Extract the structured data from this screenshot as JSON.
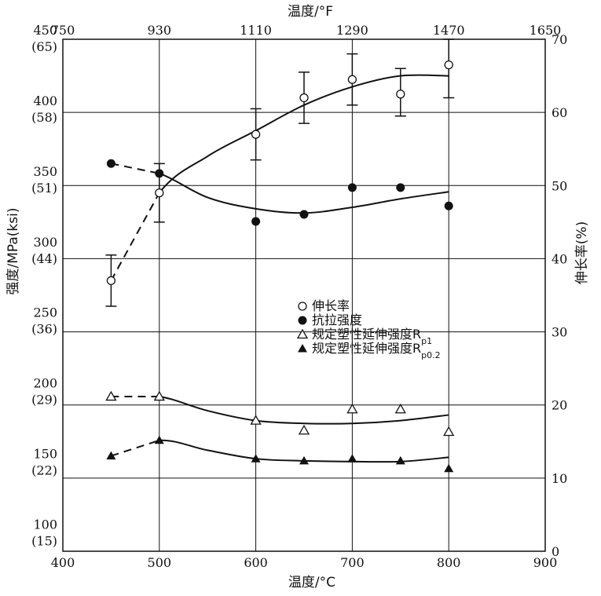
{
  "chart_data": {
    "type": "line",
    "x_axis_bottom": {
      "label": "温度/°C",
      "range": [
        400,
        900
      ],
      "ticks": [
        "400",
        "500",
        "600",
        "700",
        "800",
        "900"
      ]
    },
    "x_axis_top": {
      "label": "温度/°F",
      "range": [
        750,
        1650
      ],
      "ticks": [
        "750",
        "930",
        "1110",
        "1290",
        "1470",
        "1650"
      ]
    },
    "y_axis_left": {
      "label": "强度/MPa(ksi)",
      "range": [
        87.5,
        450
      ],
      "ticks": [
        {
          "value": 450,
          "mpa": "450",
          "ksi": "(65)"
        },
        {
          "value": 400,
          "mpa": "400",
          "ksi": "(58)"
        },
        {
          "value": 350,
          "mpa": "350",
          "ksi": "(51)"
        },
        {
          "value": 300,
          "mpa": "300",
          "ksi": "(44)"
        },
        {
          "value": 250,
          "mpa": "250",
          "ksi": "(36)"
        },
        {
          "value": 200,
          "mpa": "200",
          "ksi": "(29)"
        },
        {
          "value": 150,
          "mpa": "150",
          "ksi": "(22)"
        },
        {
          "value": 100,
          "mpa": "100",
          "ksi": "(15)"
        }
      ]
    },
    "y_axis_right": {
      "label": "伸长率(%)",
      "range": [
        0,
        70
      ],
      "ticks": [
        "0",
        "10",
        "20",
        "30",
        "40",
        "50",
        "60",
        "70"
      ]
    },
    "grid": {
      "horizontal": true,
      "vertical": true
    },
    "legend_position": "center",
    "series": [
      {
        "name": "伸长率",
        "axis": "right",
        "marker": "open-circle",
        "points": [
          {
            "x": 450,
            "y": 37,
            "err": [
              33.5,
              40.5
            ]
          },
          {
            "x": 500,
            "y": 49,
            "err": [
              45,
              53
            ]
          },
          {
            "x": 600,
            "y": 57,
            "err": [
              53.5,
              60.5
            ]
          },
          {
            "x": 650,
            "y": 62,
            "err": [
              58.5,
              65.5
            ]
          },
          {
            "x": 700,
            "y": 64.5,
            "err": [
              61,
              68
            ]
          },
          {
            "x": 750,
            "y": 62.5,
            "err": [
              59.5,
              66
            ]
          },
          {
            "x": 800,
            "y": 66.5,
            "err": [
              62,
              70
            ]
          }
        ],
        "trend": [
          [
            450,
            37
          ],
          [
            500,
            49
          ],
          [
            550,
            54
          ],
          [
            600,
            57.5
          ],
          [
            650,
            61
          ],
          [
            700,
            63.5
          ],
          [
            750,
            65
          ],
          [
            800,
            65
          ]
        ]
      },
      {
        "name": "抗拉强度",
        "axis": "left",
        "marker": "filled-circle",
        "points": [
          {
            "x": 450,
            "y": 362
          },
          {
            "x": 500,
            "y": 355
          },
          {
            "x": 600,
            "y": 321
          },
          {
            "x": 650,
            "y": 326
          },
          {
            "x": 700,
            "y": 345
          },
          {
            "x": 750,
            "y": 345
          },
          {
            "x": 800,
            "y": 332
          }
        ],
        "trend": [
          [
            450,
            362
          ],
          [
            500,
            355
          ],
          [
            550,
            338
          ],
          [
            600,
            330
          ],
          [
            650,
            327
          ],
          [
            700,
            331
          ],
          [
            750,
            337
          ],
          [
            800,
            342
          ]
        ]
      },
      {
        "name": "规定塑性延伸强度Rp1",
        "axis": "left",
        "marker": "open-triangle",
        "points": [
          {
            "x": 450,
            "y": 197
          },
          {
            "x": 500,
            "y": 197
          },
          {
            "x": 600,
            "y": 180
          },
          {
            "x": 650,
            "y": 173
          },
          {
            "x": 700,
            "y": 188
          },
          {
            "x": 750,
            "y": 188
          },
          {
            "x": 800,
            "y": 172
          }
        ],
        "trend": [
          [
            450,
            197
          ],
          [
            500,
            197
          ],
          [
            550,
            187
          ],
          [
            600,
            180
          ],
          [
            650,
            178
          ],
          [
            700,
            178
          ],
          [
            750,
            180
          ],
          [
            800,
            184
          ]
        ]
      },
      {
        "name": "规定塑性延伸强度Rp0.2",
        "axis": "left",
        "marker": "filled-triangle",
        "points": [
          {
            "x": 450,
            "y": 155
          },
          {
            "x": 500,
            "y": 166
          },
          {
            "x": 600,
            "y": 153
          },
          {
            "x": 650,
            "y": 151.5
          },
          {
            "x": 700,
            "y": 153
          },
          {
            "x": 750,
            "y": 151.5
          },
          {
            "x": 800,
            "y": 146
          }
        ],
        "trend": [
          [
            450,
            155
          ],
          [
            500,
            166
          ],
          [
            550,
            159
          ],
          [
            600,
            153
          ],
          [
            650,
            151.5
          ],
          [
            700,
            151
          ],
          [
            750,
            151
          ],
          [
            800,
            154
          ]
        ]
      }
    ],
    "legend": [
      {
        "main": "伸长率",
        "sub": ""
      },
      {
        "main": "抗拉强度",
        "sub": ""
      },
      {
        "main": "规定塑性延伸强度R",
        "sub": "p1"
      },
      {
        "main": "规定塑性延伸强度R",
        "sub": "p0.2"
      }
    ]
  }
}
